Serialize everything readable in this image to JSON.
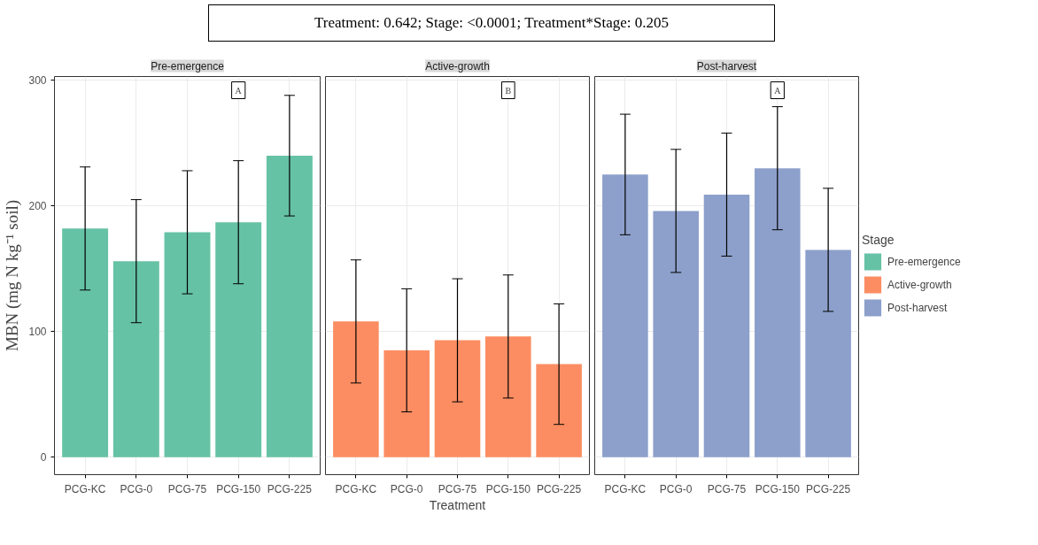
{
  "chart_data": [
    {
      "type": "bar",
      "title": "Pre-emergence",
      "ylabel": "MBN (mg N kg⁻¹ soil)",
      "annotations": [
        "A"
      ],
      "categories": [
        "PCG-KC",
        "PCG-0",
        "PCG-75",
        "PCG-150",
        "PCG-225"
      ],
      "series": [
        {
          "name": "Pre-emergence",
          "color": "#66c2a5",
          "values": [
            182,
            156,
            179,
            187,
            240
          ],
          "errors": [
            49,
            49,
            49,
            49,
            48
          ]
        }
      ],
      "ylim": [
        -14,
        303
      ],
      "yticks": [
        0,
        100,
        200,
        300
      ],
      "grid": true,
      "legend": "right"
    },
    {
      "type": "bar",
      "title": "Active-growth",
      "subtitle": "Treatment: 0.642; Stage: <0.0001; Treatment*Stage: 0.205",
      "xlabel": "Treatment",
      "annotations": [
        "B"
      ],
      "categories": [
        "PCG-KC",
        "PCG-0",
        "PCG-75",
        "PCG-150",
        "PCG-225"
      ],
      "series": [
        {
          "name": "Active-growth",
          "color": "#fc8d62",
          "values": [
            108,
            85,
            93,
            96,
            74
          ],
          "errors": [
            49,
            49,
            49,
            49,
            48
          ]
        }
      ],
      "ylim": [
        -14,
        303
      ],
      "yticks": [
        0,
        100,
        200,
        300
      ],
      "grid": true,
      "legend": "right",
      "tick_labels": "x"
    },
    {
      "type": "bar",
      "title": "Post-harvest",
      "legend_title": "Stage",
      "annotations": [
        "A"
      ],
      "categories": [
        "PCG-KC",
        "PCG-0",
        "PCG-75",
        "PCG-150",
        "PCG-225"
      ],
      "series": [
        {
          "name": "Post-harvest",
          "color": "#8da0cb",
          "values": [
            225,
            196,
            209,
            230,
            165
          ],
          "errors": [
            48,
            49,
            49,
            49,
            49
          ]
        }
      ],
      "ylim": [
        -14,
        303
      ],
      "yticks": [
        0,
        100,
        200,
        300
      ],
      "grid": true,
      "legend": "right",
      "tick_labels": "x"
    }
  ]
}
